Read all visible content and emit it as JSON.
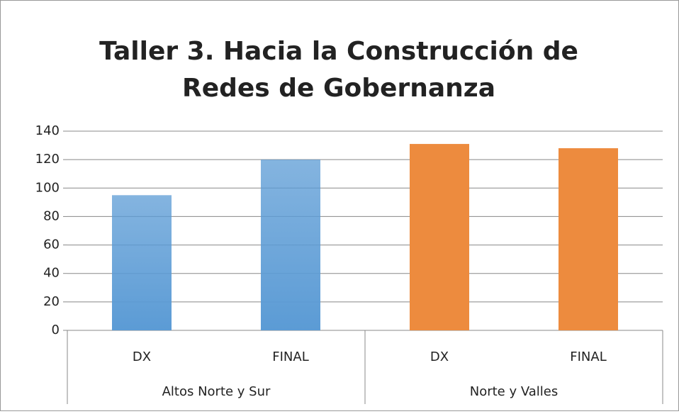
{
  "chart_data": {
    "type": "bar",
    "title": [
      "Taller 3. Hacia la Construcción de",
      "Redes de Gobernanza"
    ],
    "groups": [
      {
        "label": "Altos Norte y Sur",
        "categories": [
          "DX",
          "FINAL"
        ],
        "values": [
          95,
          120
        ],
        "color": "#5b9bd5",
        "gradient": true
      },
      {
        "label": "Norte y Valles",
        "categories": [
          "DX",
          "FINAL"
        ],
        "values": [
          131,
          128
        ],
        "color": "#ed8b3e",
        "gradient": false
      }
    ],
    "ylim": [
      0,
      140
    ],
    "yticks": [
      0,
      20,
      40,
      60,
      80,
      100,
      120,
      140
    ],
    "grid": true
  }
}
